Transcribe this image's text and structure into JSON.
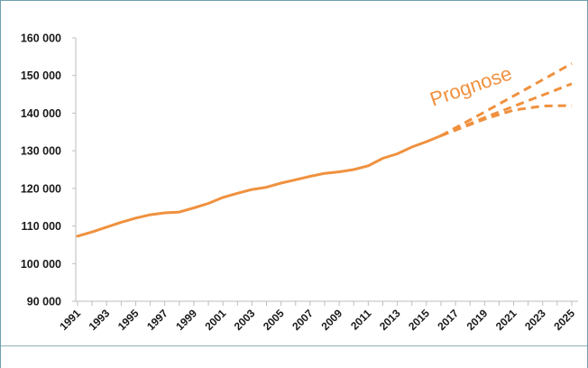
{
  "chart_data": {
    "type": "line",
    "title": "",
    "xlabel": "",
    "ylabel": "",
    "xlim": [
      1991,
      2025
    ],
    "ylim": [
      90000,
      160000
    ],
    "y_ticks": [
      90000,
      100000,
      110000,
      120000,
      130000,
      140000,
      150000,
      160000
    ],
    "y_tick_labels": [
      "90 000",
      "100 000",
      "110 000",
      "120 000",
      "130 000",
      "140 000",
      "150 000",
      "160 000"
    ],
    "x_tick_labels": [
      "1991",
      "1993",
      "1995",
      "1997",
      "1999",
      "2001",
      "2003",
      "2005",
      "2007",
      "2009",
      "2011",
      "2013",
      "2015",
      "2017",
      "2019",
      "2021",
      "2023",
      "2025"
    ],
    "grid": false,
    "legend": "none",
    "annotation": "Prognose",
    "color": "#f0913f",
    "series": [
      {
        "style": "solid",
        "x": [
          1991,
          1992,
          1993,
          1994,
          1995,
          1996,
          1997,
          1998,
          1999,
          2000,
          2001,
          2002,
          2003,
          2004,
          2005,
          2006,
          2007,
          2008,
          2009,
          2010,
          2011,
          2012,
          2013,
          2014,
          2015,
          2016
        ],
        "values": [
          107300,
          108400,
          109700,
          111000,
          112100,
          113000,
          113500,
          113700,
          114800,
          116000,
          117600,
          118700,
          119700,
          120300,
          121400,
          122300,
          123200,
          124000,
          124400,
          125000,
          126000,
          128000,
          129200,
          131000,
          132400,
          134000
        ]
      },
      {
        "style": "dashed",
        "x": [
          2016,
          2019,
          2022,
          2025
        ],
        "values": [
          134000,
          140300,
          146700,
          153200
        ]
      },
      {
        "style": "dashed",
        "x": [
          2016,
          2019,
          2022,
          2025
        ],
        "values": [
          134000,
          138800,
          143300,
          147800
        ]
      },
      {
        "style": "dashed",
        "x": [
          2016,
          2019,
          2021,
          2023,
          2025
        ],
        "values": [
          134000,
          138400,
          140800,
          141900,
          142000
        ]
      }
    ]
  }
}
